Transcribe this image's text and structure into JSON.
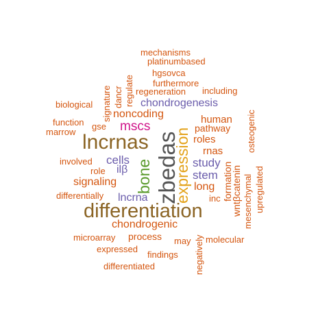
{
  "palette": {
    "orange": "#d4550e",
    "brown": "#8b6424",
    "gold": "#e3a21a",
    "gray": "#555555",
    "green": "#5a9a2c",
    "purple": "#6a5cab",
    "magenta": "#d0158a"
  },
  "words": [
    {
      "text": "mechanisms",
      "color": "orange",
      "weight": 1
    },
    {
      "text": "platinumbased",
      "color": "orange",
      "weight": 1
    },
    {
      "text": "hgsovca",
      "color": "orange",
      "weight": 1
    },
    {
      "text": "furthermore",
      "color": "orange",
      "weight": 1
    },
    {
      "text": "regeneration",
      "color": "orange",
      "weight": 1
    },
    {
      "text": "including",
      "color": "orange",
      "weight": 1
    },
    {
      "text": "biological",
      "color": "orange",
      "weight": 1
    },
    {
      "text": "signature",
      "color": "orange",
      "weight": 1
    },
    {
      "text": "dancr",
      "color": "orange",
      "weight": 1
    },
    {
      "text": "regulate",
      "color": "orange",
      "weight": 1
    },
    {
      "text": "chondrogenesis",
      "color": "purple",
      "weight": 2
    },
    {
      "text": "noncoding",
      "color": "orange",
      "weight": 2
    },
    {
      "text": "function",
      "color": "orange",
      "weight": 1
    },
    {
      "text": "marrow",
      "color": "orange",
      "weight": 1
    },
    {
      "text": "gse",
      "color": "orange",
      "weight": 1
    },
    {
      "text": "mscs",
      "color": "magenta",
      "weight": 3
    },
    {
      "text": "human",
      "color": "orange",
      "weight": 1
    },
    {
      "text": "pathway",
      "color": "orange",
      "weight": 1
    },
    {
      "text": "osteogenic",
      "color": "orange",
      "weight": 1
    },
    {
      "text": "lncrnas",
      "color": "brown",
      "weight": 5
    },
    {
      "text": "zbedas",
      "color": "gray",
      "weight": 6
    },
    {
      "text": "expression",
      "color": "gold",
      "weight": 5
    },
    {
      "text": "roles",
      "color": "orange",
      "weight": 2
    },
    {
      "text": "rnas",
      "color": "orange",
      "weight": 2
    },
    {
      "text": "cells",
      "color": "purple",
      "weight": 2
    },
    {
      "text": "involved",
      "color": "orange",
      "weight": 1
    },
    {
      "text": "role",
      "color": "orange",
      "weight": 1
    },
    {
      "text": "ilβ",
      "color": "purple",
      "weight": 2
    },
    {
      "text": "bone",
      "color": "green",
      "weight": 4
    },
    {
      "text": "study",
      "color": "purple",
      "weight": 2
    },
    {
      "text": "stem",
      "color": "purple",
      "weight": 2
    },
    {
      "text": "formation",
      "color": "orange",
      "weight": 2
    },
    {
      "text": "wntβcatenin",
      "color": "orange",
      "weight": 1
    },
    {
      "text": "mesenchymal",
      "color": "orange",
      "weight": 1
    },
    {
      "text": "upregulated",
      "color": "orange",
      "weight": 1
    },
    {
      "text": "signaling",
      "color": "orange",
      "weight": 2
    },
    {
      "text": "long",
      "color": "orange",
      "weight": 2
    },
    {
      "text": "differentially",
      "color": "orange",
      "weight": 1
    },
    {
      "text": "lncrna",
      "color": "purple",
      "weight": 2
    },
    {
      "text": "inc",
      "color": "orange",
      "weight": 1
    },
    {
      "text": "differentiation",
      "color": "brown",
      "weight": 6
    },
    {
      "text": "chondrogenic",
      "color": "orange",
      "weight": 2
    },
    {
      "text": "negatively",
      "color": "orange",
      "weight": 1
    },
    {
      "text": "microarray",
      "color": "orange",
      "weight": 1
    },
    {
      "text": "process",
      "color": "orange",
      "weight": 1
    },
    {
      "text": "may",
      "color": "orange",
      "weight": 1
    },
    {
      "text": "molecular",
      "color": "orange",
      "weight": 1
    },
    {
      "text": "expressed",
      "color": "orange",
      "weight": 1
    },
    {
      "text": "findings",
      "color": "orange",
      "weight": 1
    },
    {
      "text": "differentiated",
      "color": "orange",
      "weight": 1
    }
  ]
}
